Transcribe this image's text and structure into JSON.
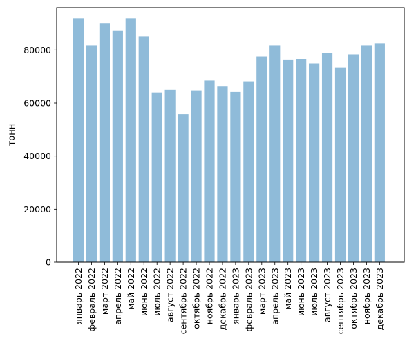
{
  "chart_data": {
    "type": "bar",
    "title": "",
    "xlabel": "",
    "ylabel": "тонн",
    "ylim": [
      0,
      96000
    ],
    "y_ticks": [
      0,
      20000,
      40000,
      60000,
      80000
    ],
    "y_tick_labels": [
      "0",
      "20000",
      "40000",
      "60000",
      "80000"
    ],
    "grid": false,
    "bar_color": "#8fbbd9",
    "categories": [
      "январь 2022",
      "февраль 2022",
      "март 2022",
      "апрель 2022",
      "май 2022",
      "июнь 2022",
      "июль 2022",
      "август 2022",
      "сентябрь 2022",
      "октябрь 2022",
      "ноябрь 2022",
      "декабрь 2022",
      "январь 2023",
      "февраль 2023",
      "март 2023",
      "апрель 2023",
      "май 2023",
      "июнь 2023",
      "июль 2023",
      "август 2023",
      "сентябрь 2023",
      "октябрь 2023",
      "ноябрь 2023",
      "декабрь 2023"
    ],
    "values": [
      92000,
      81800,
      90200,
      87200,
      92000,
      85200,
      64000,
      65000,
      55800,
      64800,
      68500,
      66200,
      64200,
      68200,
      77600,
      81800,
      76200,
      76600,
      75000,
      79000,
      73400,
      78400,
      81800,
      82600
    ]
  }
}
